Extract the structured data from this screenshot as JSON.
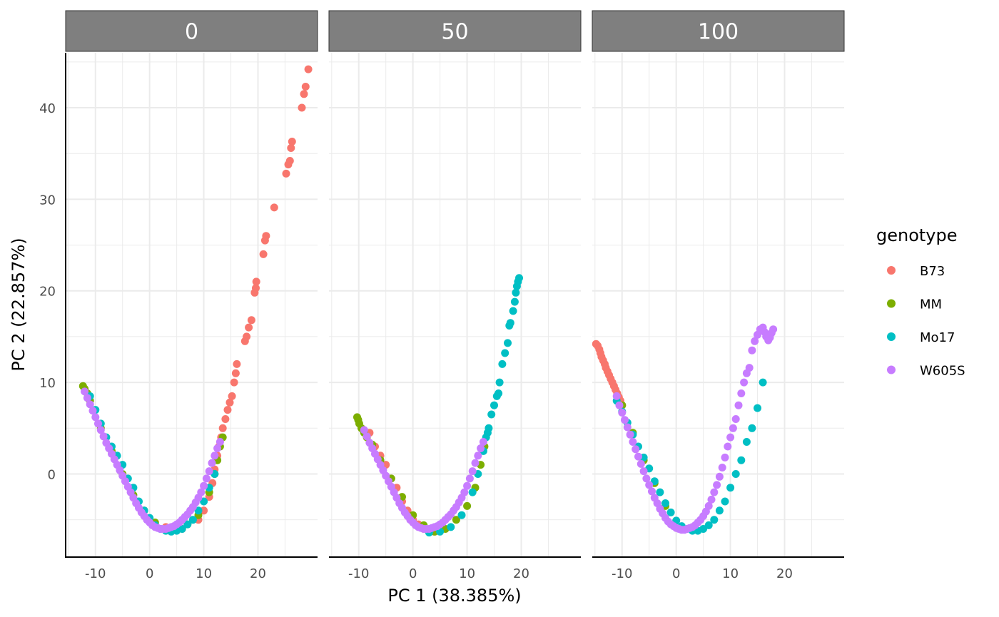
{
  "chart_data": {
    "type": "scatter",
    "xlabel": "PC 1 (38.385%)",
    "ylabel": "PC 2 (22.857%)",
    "xlim": [
      -15.5,
      31
    ],
    "ylim": [
      -9,
      46
    ],
    "x_ticks": [
      -10,
      0,
      10,
      20
    ],
    "x_tick_labels": [
      "-10",
      "0",
      "10",
      "20"
    ],
    "y_ticks": [
      0,
      10,
      20,
      30,
      40
    ],
    "y_tick_labels": [
      "0",
      "10",
      "20",
      "30",
      "40"
    ],
    "grid": true,
    "legend": {
      "title": "genotype",
      "position": "right",
      "entries": [
        {
          "name": "B73",
          "color": "#F8766D"
        },
        {
          "name": "MM",
          "color": "#7CAE00"
        },
        {
          "name": "Mo17",
          "color": "#00BFC4"
        },
        {
          "name": "W605S",
          "color": "#C77CFF"
        }
      ]
    },
    "facets": [
      {
        "label": "0",
        "series": [
          {
            "name": "B73",
            "x": [
              1,
              3,
              5,
              6,
              9,
              10,
              11,
              11.6,
              12,
              12.5,
              12.8,
              13.2,
              13.5,
              14,
              14.4,
              14.8,
              15.2,
              15.6,
              15.9,
              16.1,
              17.6,
              17.9,
              18.3,
              18.8,
              19.4,
              19.6,
              19.7,
              21,
              21.3,
              21.5,
              23,
              25.2,
              25.6,
              25.9,
              26.1,
              26.3,
              28.1,
              28.5,
              28.8,
              29.3
            ],
            "y": [
              -5.5,
              -5.8,
              -6,
              -6,
              -5,
              -4,
              -2.5,
              -1,
              0.5,
              2,
              3,
              4,
              5,
              6,
              7,
              7.8,
              8.5,
              10,
              11,
              12,
              14.5,
              15,
              16,
              16.8,
              19.8,
              20.3,
              21,
              24,
              25.5,
              26,
              29.1,
              32.8,
              33.8,
              34.2,
              35.6,
              36.3,
              40,
              41.5,
              42.3,
              44.2
            ]
          },
          {
            "name": "MM",
            "x": [
              -12.3,
              -12,
              -11.5,
              -11,
              -9,
              -7,
              -5,
              -3,
              -1,
              1,
              3,
              5,
              7,
              9,
              11,
              12,
              12.5,
              13,
              13.5
            ],
            "y": [
              9.6,
              9.3,
              8.8,
              8,
              5,
              2.5,
              0,
              -2.3,
              -4,
              -5.3,
              -6,
              -6,
              -5.5,
              -4.5,
              -2,
              0,
              1.5,
              3,
              4
            ]
          },
          {
            "name": "Mo17",
            "x": [
              -11,
              -10,
              -9,
              -8,
              -7,
              -6,
              -5,
              -4,
              -3,
              -2,
              -1,
              0,
              1,
              2,
              3,
              4,
              5,
              6,
              7,
              8,
              9,
              10,
              11,
              12
            ],
            "y": [
              8.5,
              7,
              5.5,
              4,
              3,
              2,
              1,
              -0.5,
              -1.5,
              -3,
              -4,
              -4.8,
              -5.6,
              -6,
              -6.2,
              -6.3,
              -6.2,
              -6,
              -5.5,
              -5,
              -4,
              -3,
              -1.5,
              0
            ]
          },
          {
            "name": "W605S",
            "x": [
              -12,
              -11.5,
              -11,
              -10.5,
              -10,
              -9.5,
              -9,
              -8.5,
              -8,
              -7.5,
              -7,
              -6.5,
              -6,
              -5.5,
              -5,
              -4.5,
              -4,
              -3.5,
              -3,
              -2.5,
              -2,
              -1.5,
              -1,
              -0.5,
              0,
              0.5,
              1,
              1.5,
              2,
              2.5,
              3,
              3.5,
              4,
              4.5,
              5,
              5.5,
              6,
              6.5,
              7,
              7.5,
              8,
              8.5,
              9,
              9.5,
              10,
              10.5,
              11,
              11.5,
              12,
              12.5,
              13
            ],
            "y": [
              9,
              8.3,
              7.6,
              6.9,
              6.2,
              5.5,
              4.8,
              4.1,
              3.4,
              2.8,
              2.2,
              1.6,
              1,
              0.4,
              -0.2,
              -0.8,
              -1.4,
              -2,
              -2.6,
              -3.2,
              -3.7,
              -4.2,
              -4.6,
              -5,
              -5.3,
              -5.6,
              -5.8,
              -5.9,
              -6,
              -6,
              -6,
              -5.9,
              -5.8,
              -5.7,
              -5.5,
              -5.3,
              -5,
              -4.7,
              -4.4,
              -4,
              -3.6,
              -3.1,
              -2.6,
              -2,
              -1.3,
              -0.5,
              0.3,
              1.2,
              2,
              2.8,
              3.5
            ]
          }
        ]
      },
      {
        "label": "50",
        "series": [
          {
            "name": "B73",
            "x": [
              -8,
              -7,
              -6,
              -5,
              -4,
              -3,
              -2,
              -1,
              0,
              1,
              2,
              3,
              4,
              5
            ],
            "y": [
              4.5,
              3,
              2,
              1,
              -0.5,
              -1.5,
              -3,
              -4,
              -5,
              -5.5,
              -6,
              -6.2,
              -6.3,
              -6
            ]
          },
          {
            "name": "MM",
            "x": [
              -10.3,
              -10.1,
              -9.9,
              -9.5,
              -9,
              -8.5,
              -7.5,
              -6,
              -4,
              -2,
              0,
              2,
              4,
              6,
              8,
              10,
              11.5,
              12.5,
              13.2
            ],
            "y": [
              6.2,
              5.9,
              5.5,
              5,
              4.5,
              4,
              3.2,
              1.5,
              -0.5,
              -2.5,
              -4.5,
              -5.6,
              -6.3,
              -6,
              -5,
              -3.5,
              -1.5,
              1,
              3
            ]
          },
          {
            "name": "Mo17",
            "x": [
              3,
              5,
              7,
              9,
              11,
              12,
              13,
              13.5,
              13.8,
              14,
              14.5,
              15,
              15.5,
              15.8,
              16,
              16.5,
              17,
              17.5,
              17.8,
              18,
              18.5,
              18.8,
              19,
              19.2,
              19.4,
              19.6
            ],
            "y": [
              -6.4,
              -6.3,
              -5.8,
              -4.5,
              -2,
              0,
              2.5,
              4,
              4.5,
              5,
              6.5,
              7.5,
              8.5,
              8.8,
              10,
              12,
              13.2,
              14.3,
              16.2,
              16.5,
              17.8,
              18.8,
              19.8,
              20.5,
              21,
              21.4
            ]
          },
          {
            "name": "W605S",
            "x": [
              -9,
              -8.5,
              -8,
              -7.5,
              -7,
              -6.5,
              -6,
              -5.5,
              -5,
              -4.5,
              -4,
              -3.5,
              -3,
              -2.5,
              -2,
              -1.5,
              -1,
              -0.5,
              0,
              0.5,
              1,
              1.5,
              2,
              2.5,
              3,
              3.5,
              4,
              4.5,
              5,
              5.5,
              6,
              6.5,
              7,
              7.5,
              8,
              8.5,
              9,
              9.5,
              10,
              10.5,
              11,
              11.5,
              12,
              12.5,
              13
            ],
            "y": [
              4.8,
              4.1,
              3.4,
              2.8,
              2.2,
              1.6,
              1,
              0.4,
              -0.2,
              -0.8,
              -1.4,
              -2,
              -2.6,
              -3.2,
              -3.7,
              -4.2,
              -4.6,
              -5,
              -5.3,
              -5.6,
              -5.8,
              -5.9,
              -6,
              -6,
              -6,
              -5.9,
              -5.8,
              -5.7,
              -5.5,
              -5.3,
              -5,
              -4.7,
              -4.4,
              -4,
              -3.6,
              -3.1,
              -2.6,
              -2,
              -1.3,
              -0.5,
              0.3,
              1.2,
              2,
              2.8,
              3.5
            ]
          }
        ]
      },
      {
        "label": "100",
        "series": [
          {
            "name": "B73",
            "x": [
              -14.8,
              -14.5,
              -14.2,
              -14,
              -13.8,
              -13.5,
              -13.2,
              -13,
              -12.7,
              -12.4,
              -12.1,
              -11.8,
              -11.5,
              -11.2,
              -10.9,
              -10.6,
              -10.3,
              -10
            ],
            "y": [
              14.2,
              14,
              13.6,
              13.2,
              12.8,
              12.4,
              12,
              11.6,
              11.2,
              10.8,
              10.4,
              10,
              9.6,
              9.2,
              8.8,
              8.4,
              8,
              7.5
            ]
          },
          {
            "name": "MM",
            "x": [
              -10,
              -8,
              -6,
              -4,
              -2
            ],
            "y": [
              7.5,
              4.5,
              1.5,
              -1,
              -3.5
            ]
          },
          {
            "name": "Mo17",
            "x": [
              -11,
              -10,
              -9,
              -8,
              -7,
              -6,
              -5,
              -4,
              -3,
              -2,
              -1,
              0,
              1,
              2,
              3,
              4,
              5,
              6,
              7,
              8,
              9,
              10,
              11,
              12,
              13,
              14,
              15,
              16
            ],
            "y": [
              8,
              6.8,
              5.6,
              4.3,
              3,
              1.8,
              0.6,
              -0.8,
              -2,
              -3.2,
              -4.2,
              -5.1,
              -5.7,
              -6,
              -6.2,
              -6.2,
              -6,
              -5.6,
              -5,
              -4,
              -3,
              -1.5,
              0,
              1.5,
              3.5,
              5,
              7.2,
              10
            ]
          },
          {
            "name": "W605S",
            "x": [
              -11,
              -10.5,
              -10,
              -9.5,
              -9,
              -8.5,
              -8,
              -7.5,
              -7,
              -6.5,
              -6,
              -5.5,
              -5,
              -4.5,
              -4,
              -3.5,
              -3,
              -2.5,
              -2,
              -1.5,
              -1,
              -0.5,
              0,
              0.5,
              1,
              1.5,
              2,
              2.5,
              3,
              3.5,
              4,
              4.5,
              5,
              5.5,
              6,
              6.5,
              7,
              7.5,
              8,
              8.5,
              9,
              9.5,
              10,
              10.5,
              11,
              11.5,
              12,
              12.5,
              13,
              13.5,
              14,
              14.5,
              15,
              15.5,
              16,
              16.3,
              16.6,
              17,
              17.3,
              17.6,
              17.9
            ],
            "y": [
              8.5,
              7.5,
              6.7,
              5.9,
              5.1,
              4.3,
              3.5,
              2.7,
              1.9,
              1.1,
              0.3,
              -0.5,
              -1.2,
              -1.9,
              -2.6,
              -3.2,
              -3.8,
              -4.3,
              -4.8,
              -5.2,
              -5.5,
              -5.7,
              -5.9,
              -6,
              -6.1,
              -6.1,
              -6,
              -5.9,
              -5.8,
              -5.6,
              -5.3,
              -5,
              -4.6,
              -4.1,
              -3.5,
              -2.8,
              -2,
              -1.2,
              -0.3,
              0.7,
              1.8,
              3,
              4,
              5,
              6,
              7.5,
              8.8,
              10,
              11,
              11.6,
              13.5,
              14.5,
              15.2,
              15.8,
              16,
              15.5,
              15,
              14.6,
              14.9,
              15.4,
              15.8
            ]
          }
        ]
      }
    ]
  }
}
